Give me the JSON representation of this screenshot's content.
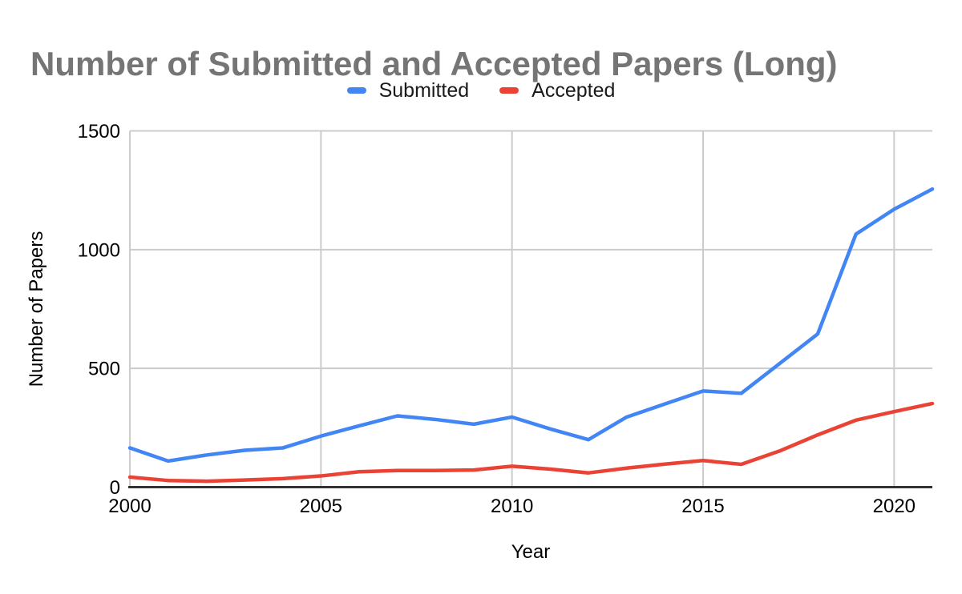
{
  "title": "Number of Submitted and Accepted Papers (Long)",
  "legend": {
    "items": [
      {
        "label": "Submitted",
        "color": "#4285f4"
      },
      {
        "label": "Accepted",
        "color": "#ea4335"
      }
    ]
  },
  "axes": {
    "x_title": "Year",
    "y_title": "Number of Papers",
    "x_ticks": [
      2000,
      2005,
      2010,
      2015,
      2020
    ],
    "y_ticks": [
      0,
      500,
      1000,
      1500
    ]
  },
  "colors": {
    "title_text": "#757575",
    "axis_text": "#000000",
    "gridline": "#cccccc",
    "baseline": "#333333",
    "background": "#ffffff"
  },
  "chart_data": {
    "type": "line",
    "title": "Number of Submitted and Accepted Papers (Long)",
    "xlabel": "Year",
    "ylabel": "Number of Papers",
    "x": [
      2000,
      2001,
      2002,
      2003,
      2004,
      2005,
      2006,
      2007,
      2008,
      2009,
      2010,
      2011,
      2012,
      2013,
      2014,
      2015,
      2016,
      2017,
      2018,
      2019,
      2020,
      2021
    ],
    "series": [
      {
        "name": "Submitted",
        "color": "#4285f4",
        "values": [
          165,
          110,
          135,
          155,
          165,
          215,
          258,
          300,
          285,
          265,
          295,
          245,
          200,
          295,
          350,
          405,
          395,
          520,
          645,
          1065,
          1170,
          1255
        ]
      },
      {
        "name": "Accepted",
        "color": "#ea4335",
        "values": [
          42,
          28,
          25,
          30,
          36,
          47,
          65,
          70,
          70,
          72,
          88,
          76,
          60,
          80,
          97,
          112,
          96,
          152,
          220,
          282,
          318,
          352
        ]
      }
    ],
    "xlim": [
      2000,
      2021
    ],
    "ylim": [
      0,
      1500
    ],
    "grid": true,
    "legend_position": "top"
  }
}
